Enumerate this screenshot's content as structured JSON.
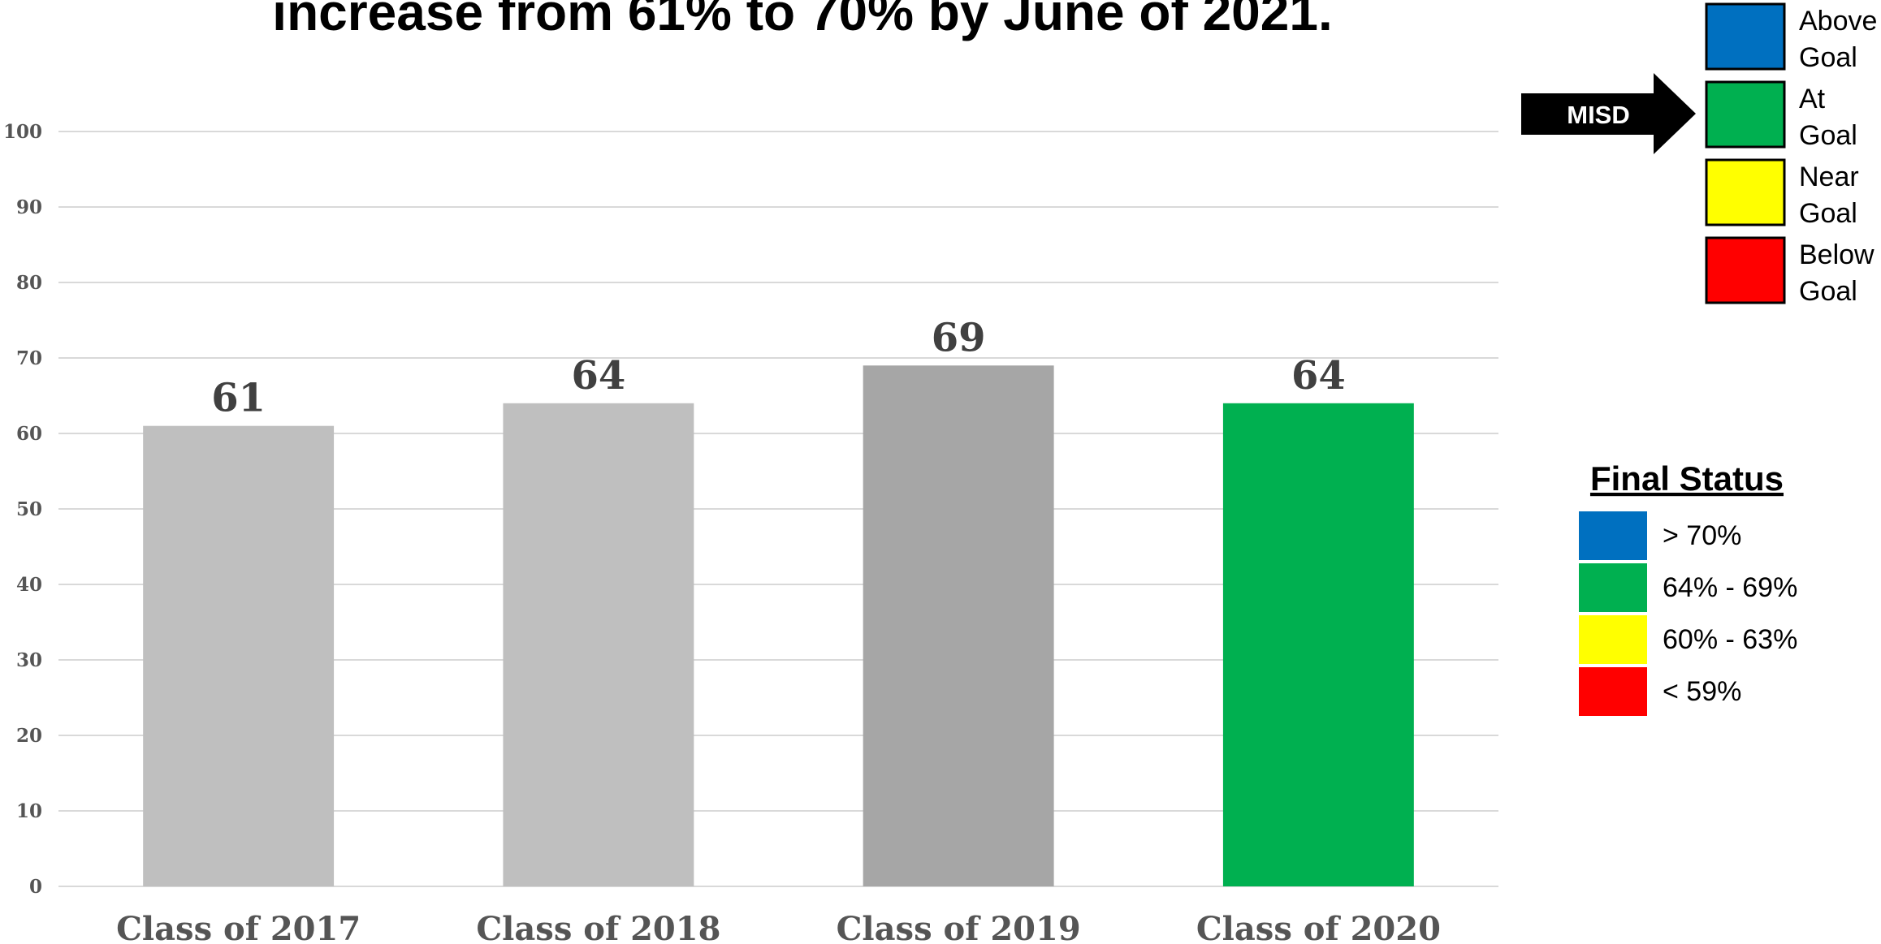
{
  "chart_data": {
    "type": "bar",
    "title": "increase from 61% to 70% by June of 2021.",
    "categories": [
      "Class of 2017",
      "Class of 2018",
      "Class of 2019",
      "Class of 2020"
    ],
    "values": [
      61,
      64,
      69,
      64
    ],
    "data_labels": [
      "61",
      "64",
      "69",
      "64"
    ],
    "bar_colors": [
      "#bfbfbf",
      "#bfbfbf",
      "#a6a6a6",
      "#00b050"
    ],
    "ylim": [
      0,
      100
    ],
    "yticks": [
      0,
      10,
      20,
      30,
      40,
      50,
      60,
      70,
      80,
      90,
      100
    ],
    "grid": true
  },
  "goal_legend": {
    "pointer_label": "MISD",
    "items": [
      {
        "line1": "Above",
        "line2": "Goal",
        "color": "#0070c0"
      },
      {
        "line1": "At",
        "line2": "Goal",
        "color": "#00b050"
      },
      {
        "line1": "Near",
        "line2": "Goal",
        "color": "#ffff00"
      },
      {
        "line1": "Below",
        "line2": "Goal",
        "color": "#ff0000"
      }
    ]
  },
  "final_status": {
    "title": "Final Status",
    "items": [
      {
        "label": "> 70%",
        "color": "#0070c0"
      },
      {
        "label": "64% - 69%",
        "color": "#00b050"
      },
      {
        "label": "60% - 63%",
        "color": "#ffff00"
      },
      {
        "label": "< 59%",
        "color": "#ff0000"
      }
    ]
  }
}
